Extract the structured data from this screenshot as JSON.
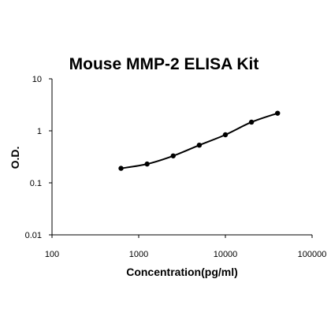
{
  "chart_data": {
    "type": "scatter",
    "title": "Mouse MMP-2 ELISA Kit",
    "xlabel": "Concentration(pg/ml)",
    "ylabel": "O.D.",
    "xscale": "log",
    "yscale": "log",
    "xlim": [
      100,
      100000
    ],
    "ylim": [
      0.01,
      10
    ],
    "x_ticks": [
      100,
      1000,
      10000,
      100000
    ],
    "x_tick_labels": [
      "100",
      "1000",
      "10000",
      "100000"
    ],
    "y_ticks": [
      0.01,
      0.1,
      1,
      10
    ],
    "y_tick_labels": [
      "0.01",
      "0.1",
      "1",
      "10"
    ],
    "grid": false,
    "legend": "none",
    "curve": "fitted",
    "series": [
      {
        "x": [
          625,
          1250,
          2500,
          5000,
          10000,
          20000,
          40000
        ],
        "y": [
          0.19,
          0.23,
          0.33,
          0.53,
          0.84,
          1.47,
          2.18
        ],
        "color": "#000000"
      }
    ]
  }
}
